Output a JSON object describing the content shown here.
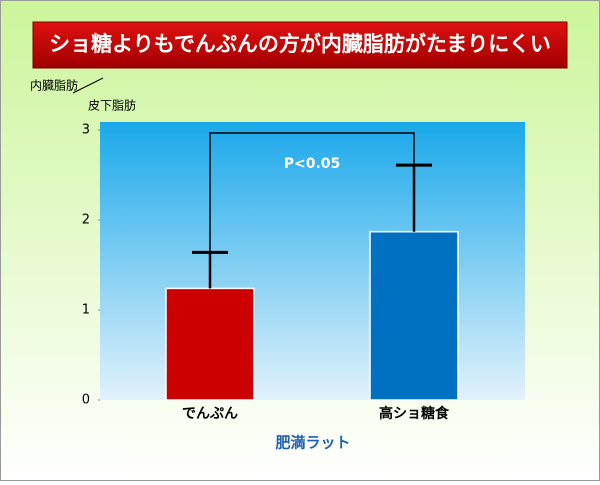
{
  "chart_data": {
    "type": "bar",
    "title": "ショ糖よりもでんぷんの方が内臓脂肪がたまりにくい",
    "ylabel_top": "内臓脂肪",
    "ylabel_bottom": "皮下脂肪",
    "xlabel": "肥満ラット",
    "annotation": "P<0.05",
    "categories": [
      "でんぷん",
      "高ショ糖食"
    ],
    "values": [
      1.24,
      1.87
    ],
    "errors": [
      0.4,
      0.74
    ],
    "colors": [
      "#cc0000",
      "#0070c0"
    ],
    "ylim": [
      0,
      3
    ],
    "yticks": [
      0,
      1,
      2,
      3
    ]
  }
}
